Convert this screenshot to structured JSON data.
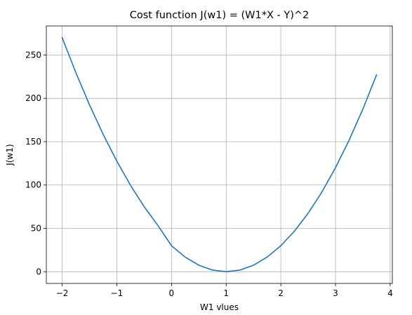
{
  "chart_data": {
    "type": "line",
    "title": "Cost function J(w1) = (W1*X - Y)^2",
    "xlabel": "W1 vlues",
    "ylabel": "J(w1)",
    "xlim": [
      -2.29,
      4.04
    ],
    "ylim": [
      -13.5,
      283.5
    ],
    "xticks": [
      -2,
      -1,
      0,
      1,
      2,
      3,
      4
    ],
    "yticks": [
      0,
      50,
      100,
      150,
      200,
      250
    ],
    "grid": true,
    "series": [
      {
        "color": "#1f77b4",
        "x": [
          -2.0,
          -1.75,
          -1.5,
          -1.25,
          -1.0,
          -0.75,
          -0.5,
          -0.25,
          0.0,
          0.25,
          0.5,
          0.75,
          1.0,
          1.25,
          1.5,
          1.75,
          2.0,
          2.25,
          2.5,
          2.75,
          3.0,
          3.25,
          3.5,
          3.75
        ],
        "y": [
          270.0,
          229.7,
          192.5,
          158.4,
          127.5,
          99.7,
          75.0,
          53.4,
          30.0,
          16.9,
          7.5,
          1.9,
          0.0,
          1.9,
          7.5,
          16.9,
          30.0,
          46.9,
          67.5,
          91.9,
          120.0,
          151.9,
          187.5,
          226.9
        ]
      }
    ]
  }
}
